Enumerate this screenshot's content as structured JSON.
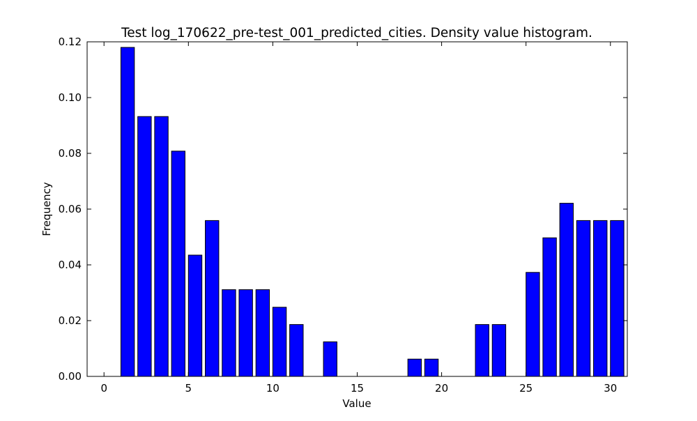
{
  "chart_data": {
    "type": "bar",
    "title": "Test log_170622_pre-test_001_predicted_cities. Density value histogram.",
    "xlabel": "Value",
    "ylabel": "Frequency",
    "xlim": [
      -1,
      31
    ],
    "ylim": [
      0,
      0.12
    ],
    "xticks": [
      0,
      5,
      10,
      15,
      20,
      25,
      30
    ],
    "xtick_labels": [
      "0",
      "5",
      "10",
      "15",
      "20",
      "25",
      "30"
    ],
    "yticks": [
      0.0,
      0.02,
      0.04,
      0.06,
      0.08,
      0.1,
      0.12
    ],
    "ytick_labels": [
      "0.00",
      "0.02",
      "0.04",
      "0.06",
      "0.08",
      "0.10",
      "0.12"
    ],
    "grid": false,
    "legend": "none",
    "bar_color": "#0000ff",
    "edge_color": "#000000",
    "bar_width": 0.8,
    "bars": [
      {
        "left": 1,
        "value": 0.118
      },
      {
        "left": 2,
        "value": 0.0932
      },
      {
        "left": 3,
        "value": 0.0932
      },
      {
        "left": 4,
        "value": 0.0808
      },
      {
        "left": 5,
        "value": 0.0435
      },
      {
        "left": 6,
        "value": 0.0559
      },
      {
        "left": 7,
        "value": 0.0311
      },
      {
        "left": 8,
        "value": 0.0311
      },
      {
        "left": 9,
        "value": 0.0311
      },
      {
        "left": 10,
        "value": 0.0248
      },
      {
        "left": 11,
        "value": 0.0186
      },
      {
        "left": 12,
        "value": 0
      },
      {
        "left": 13,
        "value": 0.0124
      },
      {
        "left": 14,
        "value": 0
      },
      {
        "left": 15,
        "value": 0
      },
      {
        "left": 16,
        "value": 0
      },
      {
        "left": 17,
        "value": 0
      },
      {
        "left": 18,
        "value": 0.0062
      },
      {
        "left": 19,
        "value": 0.0062
      },
      {
        "left": 20,
        "value": 0
      },
      {
        "left": 21,
        "value": 0
      },
      {
        "left": 22,
        "value": 0.0186
      },
      {
        "left": 23,
        "value": 0.0186
      },
      {
        "left": 24,
        "value": 0
      },
      {
        "left": 25,
        "value": 0.0373
      },
      {
        "left": 26,
        "value": 0.0497
      },
      {
        "left": 27,
        "value": 0.0621
      },
      {
        "left": 28,
        "value": 0.0559
      },
      {
        "left": 29,
        "value": 0.0559
      },
      {
        "left": 30,
        "value": 0.0559
      }
    ]
  }
}
